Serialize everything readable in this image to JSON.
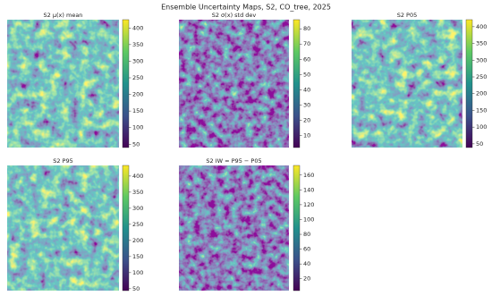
{
  "title": "Ensemble Uncertainty Maps, S2, CO_tree, 2025",
  "chart_data": [
    {
      "type": "heatmap",
      "title": "S2 μ(x) mean",
      "colormap": "viridis",
      "clim": [
        40,
        425
      ],
      "cticks": [
        50,
        100,
        150,
        200,
        250,
        300,
        350,
        400
      ]
    },
    {
      "type": "heatmap",
      "title": "S2 σ(x) std dev",
      "colormap": "viridis",
      "clim": [
        2,
        86
      ],
      "cticks": [
        10,
        20,
        30,
        40,
        50,
        60,
        70,
        80
      ]
    },
    {
      "type": "heatmap",
      "title": "S2 P05",
      "colormap": "viridis",
      "clim": [
        39,
        421
      ],
      "cticks": [
        50,
        100,
        150,
        200,
        250,
        300,
        350,
        400
      ]
    },
    {
      "type": "heatmap",
      "title": "S2 P95",
      "colormap": "viridis",
      "clim": [
        44,
        433
      ],
      "cticks": [
        50,
        100,
        150,
        200,
        250,
        300,
        350,
        400
      ]
    },
    {
      "type": "heatmap",
      "title": "S2 IW = P95 − P05",
      "colormap": "viridis",
      "clim": [
        4,
        173
      ],
      "cticks": [
        20,
        40,
        60,
        80,
        100,
        120,
        140,
        160
      ]
    }
  ]
}
